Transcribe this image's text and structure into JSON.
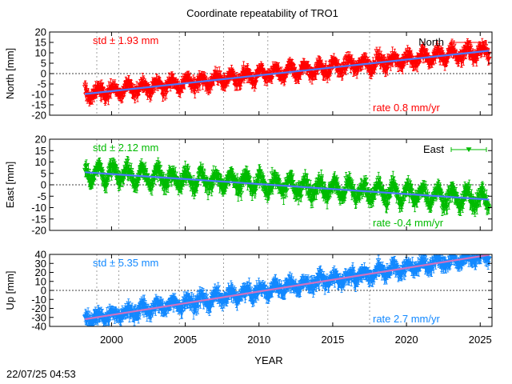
{
  "timestamp": "22/07/25 04:53",
  "chart_data": {
    "type": "scatter",
    "title": "Coordinate repeatability of TRO1",
    "xlabel": "YEAR",
    "xlim": [
      1995.8,
      2025.8
    ],
    "xticks": [
      "2000",
      "2005",
      "2010",
      "2015",
      "2020",
      "2025"
    ],
    "xtick_values": [
      2000,
      2005,
      2010,
      2015,
      2020,
      2025
    ],
    "vgrid_years": [
      1999.0,
      2000.5,
      2004.6,
      2007.6,
      2010.6,
      2017.5
    ],
    "data_start": 1998.2,
    "data_end": 2025.6,
    "panels": [
      {
        "name": "north",
        "ylabel": "North [mm]",
        "ylim": [
          -20,
          20
        ],
        "yticks": [
          "20",
          "15",
          "10",
          "5",
          "0",
          "-5",
          "-10",
          "-15",
          "-20"
        ],
        "ytick_values": [
          20,
          15,
          10,
          5,
          0,
          -5,
          -10,
          -15,
          -20
        ],
        "legend": "North",
        "std_label": "std ± 1.93 mm",
        "rate_label": "rate  0.8 mm/yr",
        "color": "#ff0000",
        "trend_color": "#4c78ff",
        "trend": [
          [
            1998.2,
            -9.8
          ],
          [
            2025.6,
            11.0
          ]
        ],
        "scatter": 2.2,
        "seasonal_amp": 2.4
      },
      {
        "name": "east",
        "ylabel": "East [mm]",
        "ylim": [
          -20,
          20
        ],
        "yticks": [
          "20",
          "15",
          "10",
          "5",
          "0",
          "-5",
          "-10",
          "-15",
          "-20"
        ],
        "ytick_values": [
          20,
          15,
          10,
          5,
          0,
          -5,
          -10,
          -15,
          -20
        ],
        "legend": "East",
        "std_label": "std ± 2.12 mm",
        "rate_label": "rate -0.4 mm/yr",
        "color": "#00bb00",
        "trend_color": "#4c78ff",
        "trend": [
          [
            1998.2,
            5.5
          ],
          [
            2025.6,
            -6.5
          ]
        ],
        "scatter": 2.4,
        "seasonal_amp": 3.2
      },
      {
        "name": "up",
        "ylabel": "Up [mm]",
        "ylim": [
          -40,
          40
        ],
        "yticks": [
          "40",
          "30",
          "20",
          "10",
          "0",
          "-10",
          "-20",
          "-30",
          "-40"
        ],
        "ytick_values": [
          40,
          30,
          20,
          10,
          0,
          -10,
          -20,
          -30,
          -40
        ],
        "legend": "",
        "std_label": "std ± 5.35 mm",
        "rate_label": "rate  2.7 mm/yr",
        "color": "#1188ff",
        "trend_color": "#d070c0",
        "trend": [
          [
            1998.2,
            -32.0
          ],
          [
            2025.6,
            39.5
          ]
        ],
        "scatter": 5.5,
        "seasonal_amp": 4.5
      }
    ]
  }
}
